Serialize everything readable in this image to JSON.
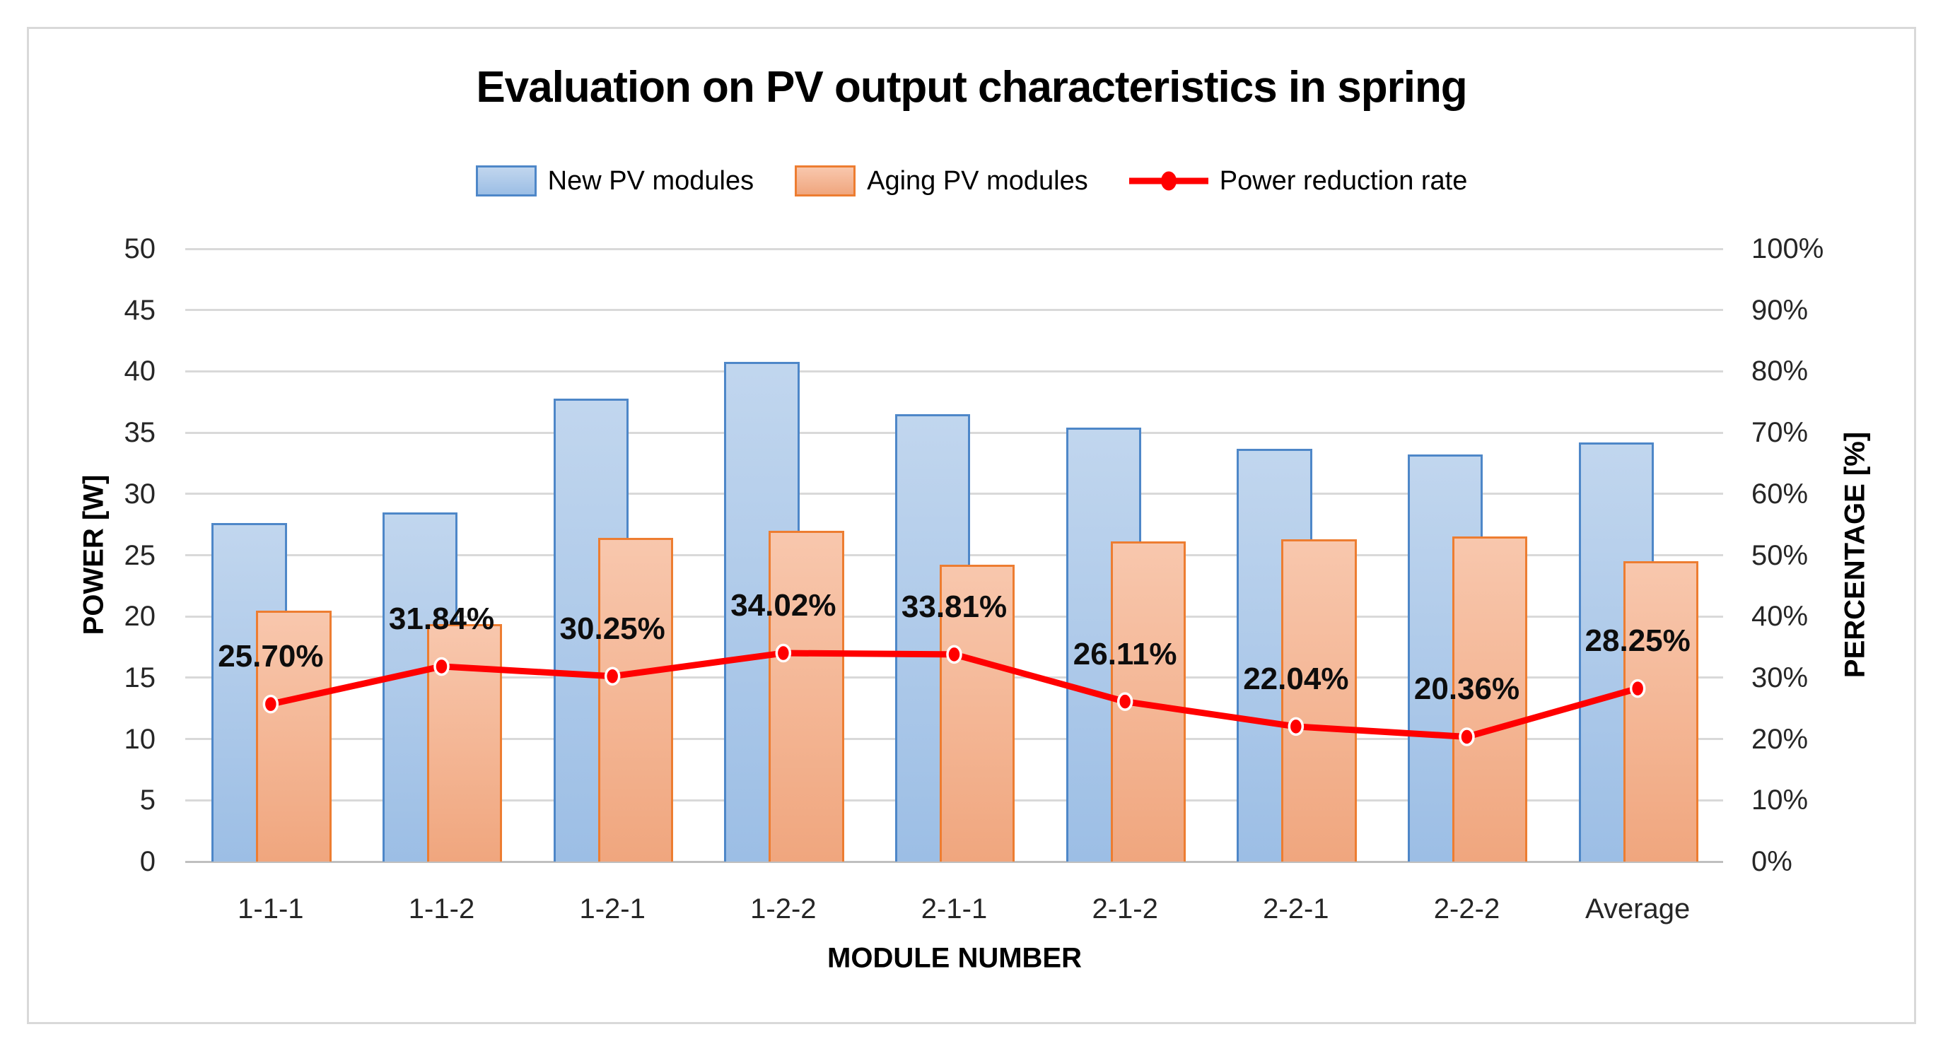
{
  "title": "Evaluation on PV output characteristics in spring",
  "legend": [
    {
      "label": "New PV modules",
      "type": "bar"
    },
    {
      "label": "Aging PV modules",
      "type": "bar"
    },
    {
      "label": "Power reduction rate",
      "type": "line"
    }
  ],
  "axes": {
    "left": {
      "title": "POWER [W]",
      "ticks": [
        0,
        5,
        10,
        15,
        20,
        25,
        30,
        35,
        40,
        45,
        50
      ],
      "max": 50
    },
    "right": {
      "title": "PERCENTAGE [%]",
      "ticks": [
        "0%",
        "10%",
        "20%",
        "30%",
        "40%",
        "50%",
        "60%",
        "70%",
        "80%",
        "90%",
        "100%"
      ],
      "max": 100
    },
    "x": {
      "title": "MODULE NUMBER"
    }
  },
  "chart_data": {
    "type": "bar+line",
    "categories": [
      "1-1-1",
      "1-1-2",
      "1-2-1",
      "1-2-2",
      "2-1-1",
      "2-1-2",
      "2-2-1",
      "2-2-2",
      "Average"
    ],
    "series": [
      {
        "name": "New PV modules",
        "axis": "left",
        "kind": "bar",
        "values": [
          27.6,
          28.5,
          37.8,
          40.8,
          36.5,
          35.4,
          33.7,
          33.2,
          34.2
        ]
      },
      {
        "name": "Aging PV modules",
        "axis": "left",
        "kind": "bar",
        "values": [
          20.5,
          19.4,
          26.4,
          27.0,
          24.2,
          26.1,
          26.3,
          26.5,
          24.5
        ]
      },
      {
        "name": "Power reduction rate",
        "axis": "right",
        "kind": "line",
        "values": [
          25.7,
          31.84,
          30.25,
          34.02,
          33.81,
          26.11,
          22.04,
          20.36,
          28.25
        ],
        "labels": [
          "25.70%",
          "31.84%",
          "30.25%",
          "34.02%",
          "33.81%",
          "26.11%",
          "22.04%",
          "20.36%",
          "28.25%"
        ]
      }
    ],
    "ylim_left": [
      0,
      50
    ],
    "ylim_right": [
      0,
      100
    ],
    "grid": true,
    "legend_position": "top"
  },
  "colors": {
    "new_fill_top": "#c1d6ee",
    "new_fill_bot": "#9cbee5",
    "new_border": "#4e87c8",
    "aging_fill_top": "#f8c7ad",
    "aging_fill_bot": "#f0a67e",
    "aging_border": "#ed7d31",
    "line": "#ff0000",
    "gridline": "#d9d9d9",
    "baseline": "#bfbfbf"
  }
}
